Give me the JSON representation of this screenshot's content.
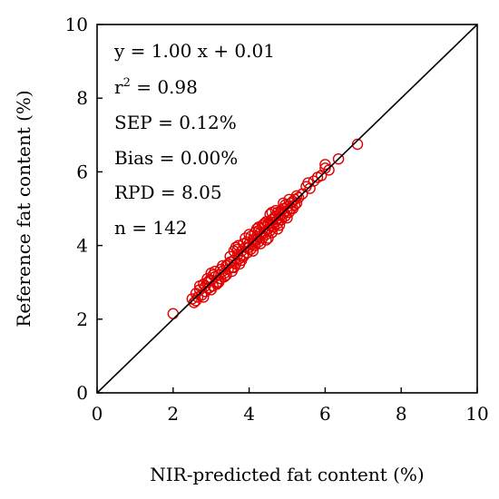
{
  "chart_data": {
    "type": "scatter",
    "xlabel": "NIR-predicted fat content (%)",
    "ylabel": "Reference fat content (%)",
    "xlim": [
      0,
      10
    ],
    "ylim": [
      0,
      10
    ],
    "xticks": [
      "0",
      "2",
      "4",
      "6",
      "8",
      "10"
    ],
    "yticks": [
      "0",
      "2",
      "4",
      "6",
      "8",
      "10"
    ],
    "grid": false,
    "marker": "open-circle",
    "marker_color": "#e00000",
    "line_color": "#000000",
    "reference_line": {
      "slope": 1.0,
      "intercept": 0.0
    },
    "annotations": {
      "equation": "y = 1.00 x + 0.01",
      "r2_prefix": "r",
      "r2_sup": "2",
      "r2_suffix": " = 0.98",
      "sep": "SEP = 0.12%",
      "bias": "Bias = 0.00%",
      "rpd": "RPD = 8.05",
      "n": "n = 142"
    },
    "series": [
      {
        "points": [
          [
            2.0,
            2.15
          ],
          [
            2.5,
            2.55
          ],
          [
            2.55,
            2.45
          ],
          [
            2.6,
            2.7
          ],
          [
            2.65,
            2.6
          ],
          [
            2.7,
            2.8
          ],
          [
            2.75,
            2.65
          ],
          [
            2.8,
            2.95
          ],
          [
            2.85,
            2.75
          ],
          [
            2.9,
            3.0
          ],
          [
            2.95,
            2.85
          ],
          [
            3.0,
            3.05
          ],
          [
            3.05,
            2.9
          ],
          [
            3.1,
            3.15
          ],
          [
            3.15,
            3.0
          ],
          [
            3.2,
            3.2
          ],
          [
            3.25,
            3.1
          ],
          [
            3.3,
            3.3
          ],
          [
            3.35,
            3.25
          ],
          [
            3.4,
            3.45
          ],
          [
            3.45,
            3.35
          ],
          [
            3.5,
            3.55
          ],
          [
            3.55,
            3.4
          ],
          [
            3.6,
            3.6
          ],
          [
            3.65,
            3.5
          ],
          [
            3.7,
            3.75
          ],
          [
            3.72,
            4.0
          ],
          [
            3.75,
            3.65
          ],
          [
            3.8,
            3.85
          ],
          [
            3.85,
            3.7
          ],
          [
            3.9,
            3.95
          ],
          [
            3.95,
            3.8
          ],
          [
            4.0,
            4.05
          ],
          [
            4.05,
            3.9
          ],
          [
            4.1,
            4.15
          ],
          [
            4.15,
            4.0
          ],
          [
            4.2,
            4.25
          ],
          [
            4.25,
            4.1
          ],
          [
            4.3,
            4.35
          ],
          [
            4.35,
            4.2
          ],
          [
            4.4,
            4.5
          ],
          [
            4.45,
            4.3
          ],
          [
            4.5,
            4.6
          ],
          [
            4.55,
            4.4
          ],
          [
            4.6,
            4.7
          ],
          [
            4.65,
            4.5
          ],
          [
            4.7,
            4.8
          ],
          [
            4.75,
            4.6
          ],
          [
            4.8,
            4.85
          ],
          [
            4.85,
            4.7
          ],
          [
            4.9,
            5.0
          ],
          [
            4.95,
            4.8
          ],
          [
            5.0,
            5.05
          ],
          [
            5.05,
            4.9
          ],
          [
            5.1,
            5.15
          ],
          [
            5.15,
            5.0
          ],
          [
            5.2,
            5.25
          ],
          [
            5.3,
            5.3
          ],
          [
            5.4,
            5.4
          ],
          [
            5.5,
            5.6
          ],
          [
            5.6,
            5.55
          ],
          [
            5.7,
            5.75
          ],
          [
            5.8,
            5.85
          ],
          [
            5.9,
            5.9
          ],
          [
            6.0,
            6.1
          ],
          [
            6.1,
            6.05
          ],
          [
            6.35,
            6.35
          ],
          [
            6.85,
            6.75
          ],
          [
            6.0,
            6.2
          ],
          [
            5.55,
            5.7
          ],
          [
            3.6,
            3.85
          ],
          [
            3.65,
            3.95
          ],
          [
            3.9,
            4.2
          ],
          [
            4.0,
            4.3
          ],
          [
            4.1,
            3.85
          ],
          [
            4.2,
            4.45
          ],
          [
            4.3,
            4.05
          ],
          [
            4.4,
            4.6
          ],
          [
            4.5,
            4.2
          ],
          [
            4.55,
            4.85
          ],
          [
            4.6,
            4.35
          ],
          [
            4.7,
            4.95
          ],
          [
            4.8,
            4.55
          ],
          [
            4.9,
            5.15
          ],
          [
            5.0,
            4.75
          ],
          [
            5.05,
            5.25
          ],
          [
            3.4,
            3.2
          ],
          [
            3.3,
            3.45
          ],
          [
            3.2,
            3.0
          ],
          [
            3.1,
            3.3
          ],
          [
            3.0,
            2.8
          ],
          [
            2.9,
            3.1
          ],
          [
            2.8,
            2.6
          ],
          [
            2.7,
            2.9
          ],
          [
            3.5,
            3.7
          ],
          [
            3.55,
            3.3
          ],
          [
            3.75,
            3.5
          ],
          [
            3.85,
            4.05
          ],
          [
            3.95,
            4.1
          ],
          [
            4.05,
            4.25
          ],
          [
            4.15,
            4.35
          ],
          [
            4.25,
            4.4
          ],
          [
            4.35,
            4.55
          ],
          [
            4.45,
            4.65
          ],
          [
            4.55,
            4.6
          ],
          [
            4.65,
            4.75
          ],
          [
            4.75,
            4.9
          ],
          [
            4.85,
            4.95
          ],
          [
            4.95,
            5.1
          ],
          [
            5.1,
            5.0
          ],
          [
            5.2,
            5.1
          ],
          [
            5.25,
            5.35
          ],
          [
            3.45,
            3.5
          ],
          [
            3.6,
            3.4
          ],
          [
            3.8,
            3.6
          ],
          [
            3.7,
            3.9
          ],
          [
            4.0,
            3.95
          ],
          [
            4.1,
            4.05
          ],
          [
            4.2,
            4.15
          ],
          [
            4.3,
            4.25
          ],
          [
            4.4,
            4.35
          ],
          [
            4.5,
            4.45
          ],
          [
            4.6,
            4.55
          ],
          [
            4.7,
            4.65
          ],
          [
            4.8,
            4.75
          ],
          [
            4.9,
            4.85
          ],
          [
            5.0,
            4.95
          ],
          [
            5.15,
            5.2
          ],
          [
            5.25,
            5.15
          ],
          [
            3.05,
            3.2
          ],
          [
            3.15,
            2.95
          ],
          [
            3.25,
            3.35
          ],
          [
            3.35,
            3.15
          ],
          [
            2.6,
            2.5
          ],
          [
            2.85,
            2.9
          ],
          [
            2.95,
            3.05
          ],
          [
            3.0,
            3.25
          ],
          [
            4.45,
            4.15
          ],
          [
            4.6,
            4.9
          ],
          [
            4.75,
            4.45
          ],
          [
            4.25,
            4.5
          ],
          [
            3.85,
            3.75
          ]
        ]
      }
    ]
  }
}
